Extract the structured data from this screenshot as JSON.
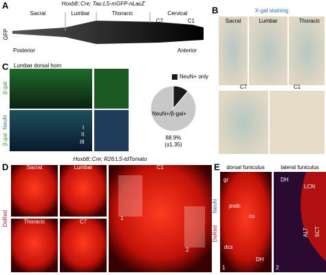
{
  "panel_a": {
    "label": "A",
    "title": "Hoxb8::Cre; Tau:LS-mGFP-nLacZ",
    "regions": [
      "Sacral",
      "Lumbar",
      "Thoracic",
      "Cervical"
    ],
    "markers": [
      "C7",
      "C1"
    ],
    "channel": "GFP",
    "left": "Posterior",
    "right": "Anterior"
  },
  "panel_b": {
    "label": "B",
    "title": "X-gal staining",
    "images": [
      "Sacral",
      "Lumbar",
      "Thoracic",
      "C7",
      "C1"
    ]
  },
  "panel_c": {
    "label": "C",
    "title": "Lumbar dorsal horn",
    "channels": [
      "β-gal",
      "NeuN",
      "β-gal"
    ],
    "laminae": [
      "I",
      "II",
      "III"
    ],
    "pie": {
      "type": "pie",
      "labels": [
        "NeuN+ only",
        "NeuN+/β-gal+"
      ],
      "values": [
        11.1,
        88.9
      ],
      "colors": [
        "#1a1a1a",
        "#c8c8c8"
      ],
      "value_labels": {
        "1": "88.9%"
      },
      "error_label": "(±1.35)"
    }
  },
  "panel_d": {
    "label": "D",
    "title": "Hoxb8::Cre; R26:LS-tdTomato",
    "images": [
      "Sacral",
      "Lumbar",
      "Thoracic",
      "C7",
      "C1"
    ],
    "channel": "DsRed",
    "insets": [
      "1",
      "2"
    ]
  },
  "panel_e": {
    "label": "E",
    "titles": [
      "dorsal funiculus",
      "lateral funiculus"
    ],
    "channels": [
      "DsRed",
      "NeuN"
    ],
    "regions_1": [
      "gr",
      "psdc",
      "cu",
      "dcs",
      "DH"
    ],
    "regions_2": [
      "DH",
      "LCN",
      "ALT",
      "SCT"
    ],
    "insets": [
      "1",
      "2"
    ]
  }
}
